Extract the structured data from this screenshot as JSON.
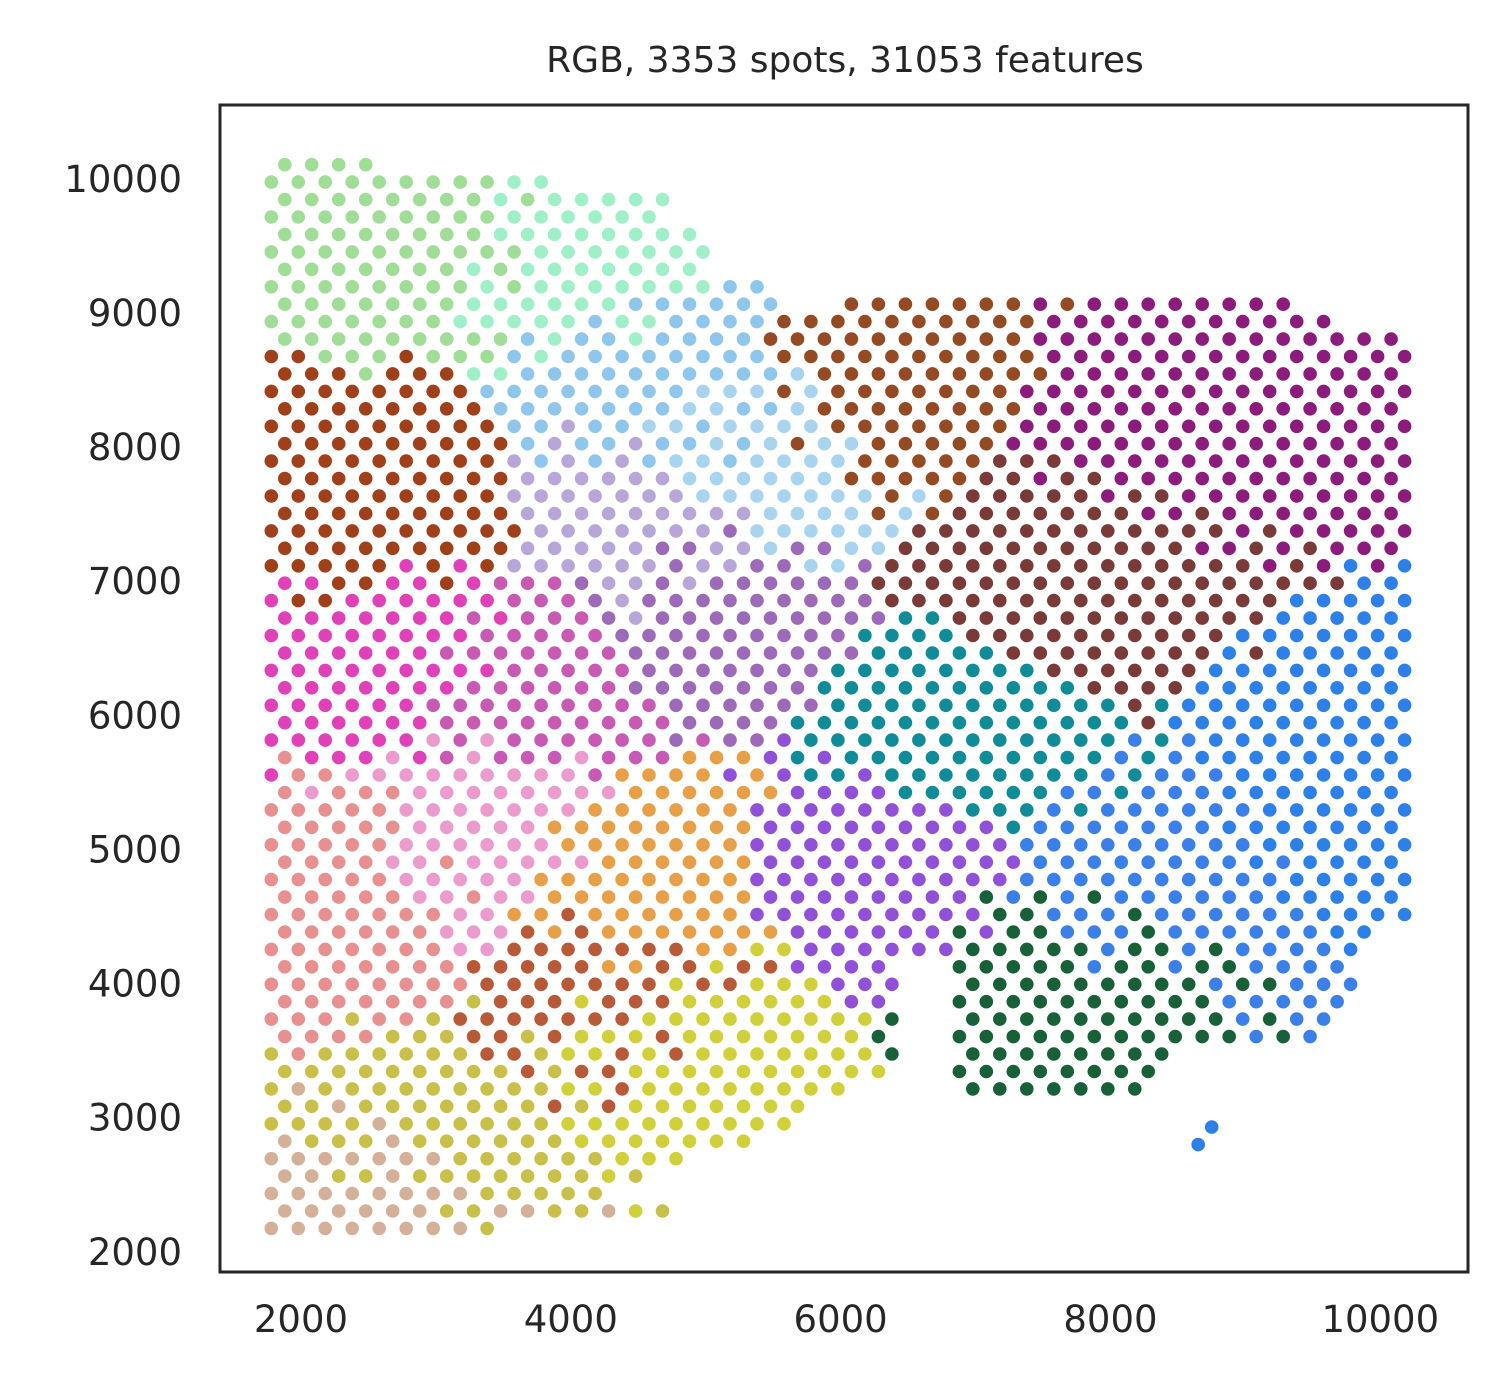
{
  "chart_data": {
    "type": "scatter",
    "title": "RGB, 3353 spots, 31053 features",
    "xlabel": "",
    "ylabel": "",
    "xlim": [
      1400,
      10650
    ],
    "ylim": [
      1850,
      10550
    ],
    "xticks": [
      "2000",
      "4000",
      "6000",
      "8000",
      "10000"
    ],
    "yticks": [
      "2000",
      "3000",
      "4000",
      "5000",
      "6000",
      "7000",
      "8000",
      "9000",
      "10000"
    ],
    "grid": false,
    "legend": "none",
    "spot_grid": {
      "x_start": 1780,
      "x_step": 200,
      "y_start": 2175,
      "y_step": 130,
      "odd_row_x_offset": 100
    },
    "regions": [
      {
        "name": "green-top",
        "color": "#a0dd96",
        "anchor": [
          2900,
          9700
        ]
      },
      {
        "name": "mint-top",
        "color": "#9ff0c8",
        "anchor": [
          4200,
          9500
        ]
      },
      {
        "name": "light-blue",
        "color": "#8fc7ec",
        "anchor": [
          4800,
          8400
        ]
      },
      {
        "name": "sky-blue",
        "color": "#a8d4f0",
        "anchor": [
          5300,
          8000
        ]
      },
      {
        "name": "lavender",
        "color": "#b8a6d8",
        "anchor": [
          4500,
          7400
        ]
      },
      {
        "name": "brown-left",
        "color": "#a0401a",
        "anchor": [
          2500,
          7500
        ]
      },
      {
        "name": "magenta-left",
        "color": "#e040b8",
        "anchor": [
          2700,
          6500
        ]
      },
      {
        "name": "magenta-mid",
        "color": "#c85ab4",
        "anchor": [
          3800,
          6300
        ]
      },
      {
        "name": "purple-mid",
        "color": "#9c6ab8",
        "anchor": [
          4900,
          6800
        ]
      },
      {
        "name": "pink",
        "color": "#ec9ccc",
        "anchor": [
          3300,
          5100
        ]
      },
      {
        "name": "salmon",
        "color": "#e89090",
        "anchor": [
          2400,
          4600
        ]
      },
      {
        "name": "orange",
        "color": "#e8a048",
        "anchor": [
          4500,
          4700
        ]
      },
      {
        "name": "rust",
        "color": "#b85a38",
        "anchor": [
          4300,
          3900
        ]
      },
      {
        "name": "yellow",
        "color": "#cfd03a",
        "anchor": [
          4800,
          3600
        ]
      },
      {
        "name": "olive-yellow",
        "color": "#c8c048",
        "anchor": [
          3100,
          2900
        ]
      },
      {
        "name": "tan-bottom",
        "color": "#d4b098",
        "anchor": [
          2700,
          2250
        ]
      },
      {
        "name": "violet",
        "color": "#9050d8",
        "anchor": [
          6400,
          4900
        ]
      },
      {
        "name": "brown-right",
        "color": "#944a22",
        "anchor": [
          6300,
          8500
        ]
      },
      {
        "name": "plum-right",
        "color": "#8c1c7c",
        "anchor": [
          8500,
          8200
        ]
      },
      {
        "name": "maroon",
        "color": "#7a3a38",
        "anchor": [
          7800,
          7000
        ]
      },
      {
        "name": "blue-right",
        "color": "#3a80e8",
        "anchor": [
          8200,
          4700
        ]
      },
      {
        "name": "dark-green",
        "color": "#186038",
        "anchor": [
          7700,
          4100
        ]
      },
      {
        "name": "teal",
        "color": "#108c98",
        "anchor": [
          7000,
          5800
        ]
      },
      {
        "name": "blue-far",
        "color": "#2c80e8",
        "anchor": [
          9800,
          5600
        ]
      }
    ]
  }
}
